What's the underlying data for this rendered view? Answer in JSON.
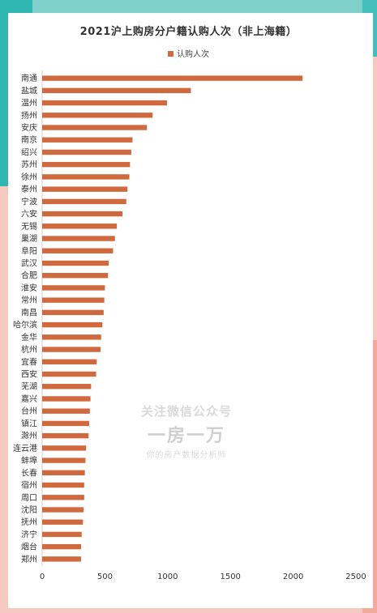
{
  "chart_data": {
    "type": "bar",
    "orientation": "horizontal",
    "title": "2021沪上购房分户籍认购人次（非上海籍）",
    "legend_position": "top",
    "series": [
      {
        "name": "认购人次",
        "color": "#d06a3e",
        "values": [
          2075,
          1185,
          995,
          880,
          835,
          720,
          710,
          700,
          695,
          680,
          670,
          640,
          595,
          580,
          565,
          530,
          525,
          500,
          495,
          490,
          480,
          470,
          465,
          435,
          430,
          390,
          385,
          380,
          375,
          370,
          350,
          345,
          340,
          335,
          335,
          330,
          325,
          315,
          310,
          310
        ]
      }
    ],
    "categories": [
      "南通",
      "盐城",
      "温州",
      "扬州",
      "安庆",
      "南京",
      "绍兴",
      "苏州",
      "徐州",
      "泰州",
      "宁波",
      "六安",
      "无锡",
      "巢湖",
      "阜阳",
      "武汉",
      "合肥",
      "淮安",
      "常州",
      "南昌",
      "哈尔滨",
      "金华",
      "杭州",
      "宜春",
      "西安",
      "芜湖",
      "嘉兴",
      "台州",
      "镇江",
      "滁州",
      "连云港",
      "蚌埠",
      "长春",
      "宿州",
      "周口",
      "沈阳",
      "抚州",
      "济宁",
      "烟台",
      "郑州"
    ],
    "xlim": [
      0,
      2500
    ],
    "xticks": [
      "0",
      "500",
      "1000",
      "1500",
      "2000",
      "2500"
    ],
    "grid": false
  },
  "watermark": {
    "line1": "关注微信公众号",
    "line2": "一房一万",
    "line3": "你的房产数据分析师"
  }
}
